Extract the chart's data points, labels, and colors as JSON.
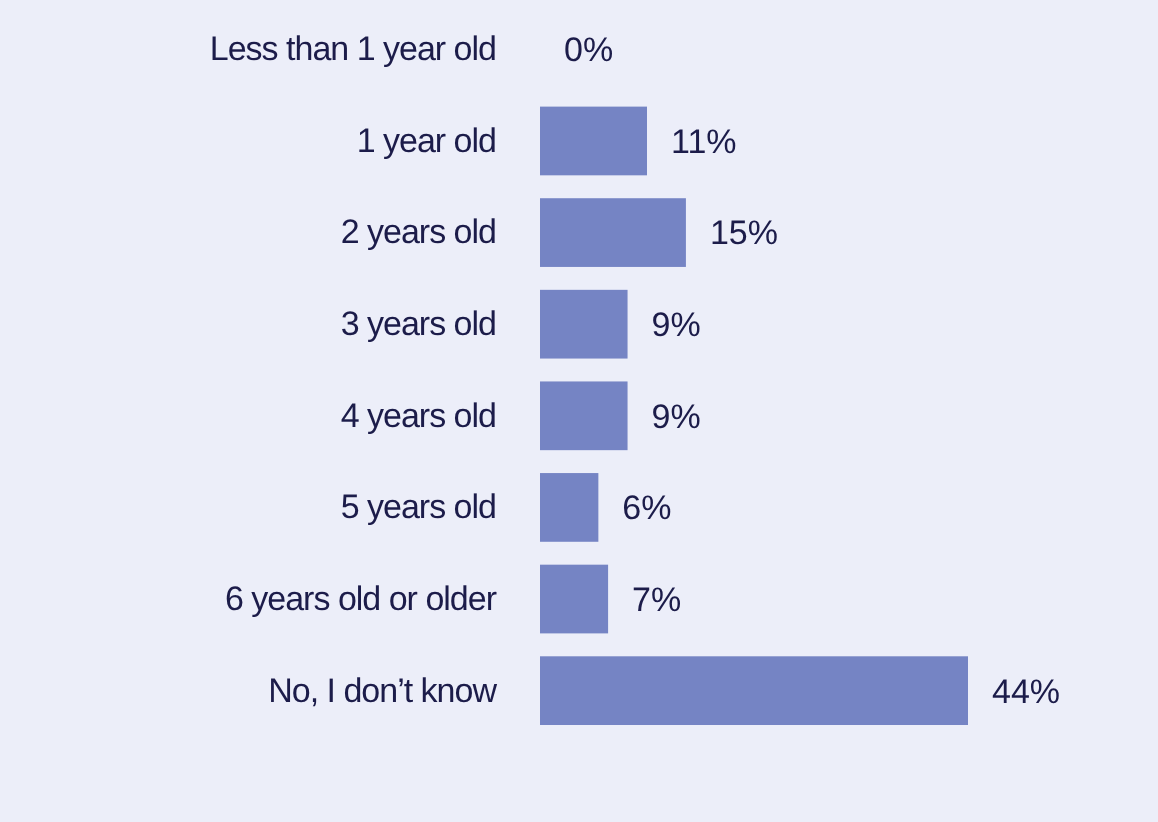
{
  "chart_data": {
    "type": "bar",
    "orientation": "horizontal",
    "categories": [
      "Less than 1 year old",
      "1 year old",
      "2 years old",
      "3 years old",
      "4 years old",
      "5 years old",
      "6 years old or older",
      "No, I don’t know"
    ],
    "values": [
      0,
      11,
      15,
      9,
      9,
      6,
      7,
      44
    ],
    "value_labels": [
      "0%",
      "11%",
      "15%",
      "9%",
      "9%",
      "6%",
      "7%",
      "44%"
    ],
    "color": "#7584c4"
  }
}
